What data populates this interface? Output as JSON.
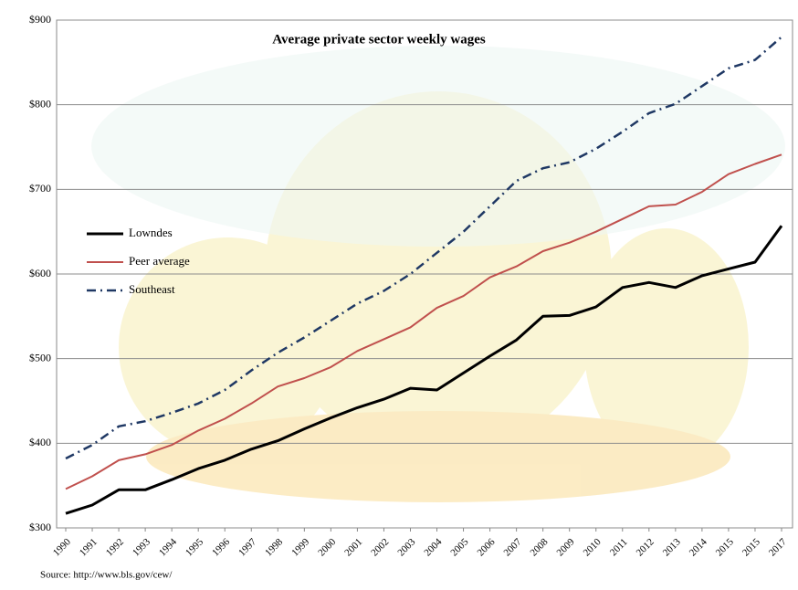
{
  "chart_data": {
    "type": "line",
    "title": "Average private sector weekly wages",
    "source": "Source: http://www.bls.gov/cew/",
    "categories": [
      "1990",
      "1991",
      "1992",
      "1993",
      "1994",
      "1995",
      "1996",
      "1997",
      "1998",
      "1999",
      "2000",
      "2001",
      "2002",
      "2003",
      "2004",
      "2005",
      "2006",
      "2007",
      "2008",
      "2009",
      "2010",
      "2011",
      "2012",
      "2013",
      "2014",
      "2015",
      "2015",
      "2017"
    ],
    "series": [
      {
        "name": "Lowndes",
        "color": "#000000",
        "line_style": "solid",
        "values": [
          317,
          327,
          345,
          345,
          357,
          370,
          380,
          393,
          403,
          417,
          430,
          442,
          452,
          465,
          463,
          483,
          503,
          522,
          550,
          551,
          561,
          584,
          590,
          584,
          598,
          606,
          614,
          657
        ]
      },
      {
        "name": "Peer average",
        "color": "#c0504d",
        "line_style": "solid",
        "values": [
          346,
          361,
          380,
          387,
          398,
          415,
          429,
          447,
          467,
          477,
          490,
          509,
          523,
          537,
          560,
          574,
          596,
          609,
          627,
          637,
          650,
          665,
          680,
          682,
          697,
          718,
          730,
          741
        ]
      },
      {
        "name": "Southeast",
        "color": "#1f3864",
        "line_style": "dash-dot",
        "values": [
          382,
          398,
          420,
          426,
          436,
          447,
          463,
          486,
          507,
          525,
          545,
          565,
          580,
          600,
          625,
          650,
          680,
          710,
          725,
          732,
          748,
          768,
          790,
          801,
          822,
          843,
          853,
          880
        ]
      }
    ],
    "ylim": [
      300,
      900
    ],
    "yticks": [
      {
        "value": 300,
        "label": "$300"
      },
      {
        "value": 400,
        "label": "$400"
      },
      {
        "value": 500,
        "label": "$500"
      },
      {
        "value": 600,
        "label": "$600"
      },
      {
        "value": 700,
        "label": "$700"
      },
      {
        "value": 800,
        "label": "$800"
      },
      {
        "value": 900,
        "label": "$900"
      }
    ],
    "grid": true,
    "legend": "left"
  }
}
